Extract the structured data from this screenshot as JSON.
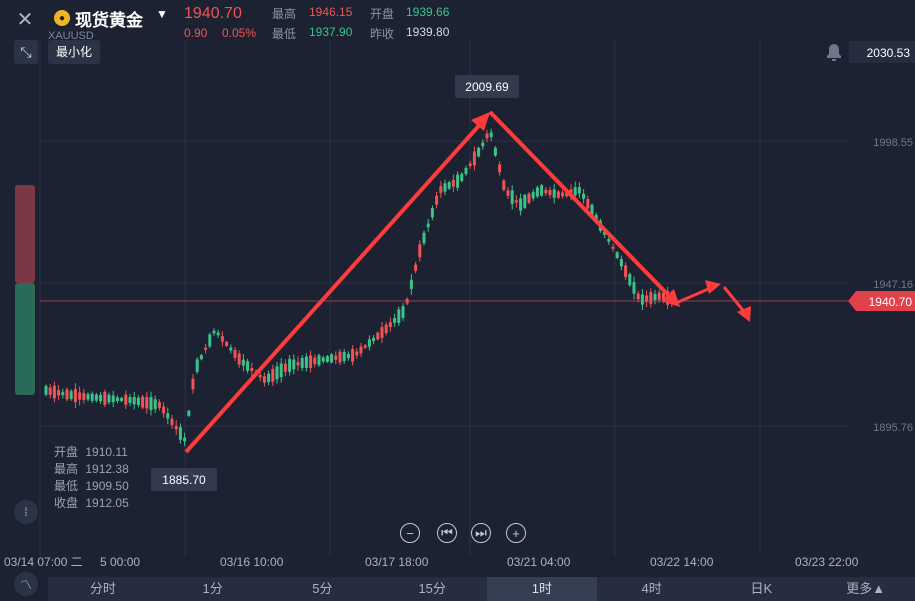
{
  "header": {
    "symbol_name": "现货黄金",
    "symbol_code": "XAUUSD",
    "price": "1940.70",
    "change": "0.90",
    "change_pct": "0.05%",
    "high_label": "最高",
    "high": "1946.15",
    "open_label": "开盘",
    "open": "1939.66",
    "low_label": "最低",
    "low": "1937.90",
    "prev_close_label": "昨收",
    "prev_close": "1939.80",
    "close_icon": "close-icon",
    "minimize_tooltip": "最小化"
  },
  "axis": {
    "y_labels": [
      "2030.53",
      "1998.55",
      "1947.16",
      "1895.76"
    ],
    "x_labels": [
      "03/14 07:00 二",
      "5 00:00",
      "03/16 10:00",
      "03/17 18:00",
      "03/21 04:00",
      "03/22 14:00",
      "03/23 22:00"
    ],
    "current_price_tag": "1940.70"
  },
  "annotations": {
    "peak": "2009.69",
    "trough": "1885.70"
  },
  "ohlc": {
    "open_label": "开盘",
    "open": "1910.11",
    "high_label": "最高",
    "high": "1912.38",
    "low_label": "最低",
    "low": "1909.50",
    "close_label": "收盘",
    "close": "1912.05"
  },
  "tabs": [
    "分时",
    "1分",
    "5分",
    "15分",
    "1时",
    "4时",
    "日K"
  ],
  "active_tab": "1时",
  "more_label": "更多▲",
  "colors": {
    "up": "#3cc38a",
    "down": "#f05454",
    "arrow": "#ff3b3b",
    "bg": "#1c2232"
  }
}
